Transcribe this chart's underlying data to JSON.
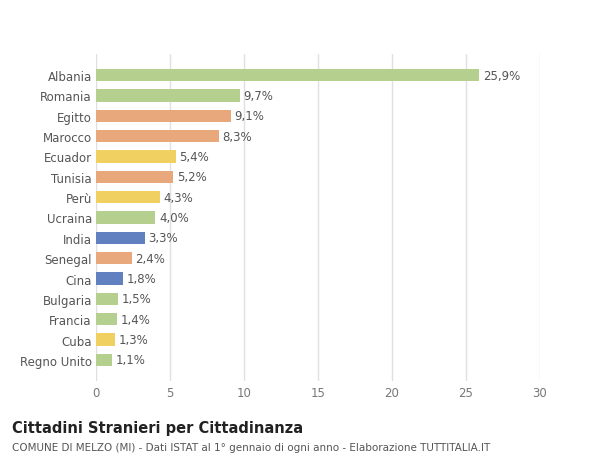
{
  "countries": [
    "Albania",
    "Romania",
    "Egitto",
    "Marocco",
    "Ecuador",
    "Tunisia",
    "Perù",
    "Ucraina",
    "India",
    "Senegal",
    "Cina",
    "Bulgaria",
    "Francia",
    "Cuba",
    "Regno Unito"
  ],
  "values": [
    25.9,
    9.7,
    9.1,
    8.3,
    5.4,
    5.2,
    4.3,
    4.0,
    3.3,
    2.4,
    1.8,
    1.5,
    1.4,
    1.3,
    1.1
  ],
  "labels": [
    "25,9%",
    "9,7%",
    "9,1%",
    "8,3%",
    "5,4%",
    "5,2%",
    "4,3%",
    "4,0%",
    "3,3%",
    "2,4%",
    "1,8%",
    "1,5%",
    "1,4%",
    "1,3%",
    "1,1%"
  ],
  "colors": [
    "#b5cf8f",
    "#b5cf8f",
    "#e8a87c",
    "#e8a87c",
    "#f0d060",
    "#e8a87c",
    "#f0d060",
    "#b5cf8f",
    "#6080c0",
    "#e8a87c",
    "#6080c0",
    "#b5cf8f",
    "#b5cf8f",
    "#f0d060",
    "#b5cf8f"
  ],
  "legend": {
    "Europa": "#b5cf8f",
    "Africa": "#e8a87c",
    "America": "#f0d060",
    "Asia": "#6080c0"
  },
  "xlim": [
    0,
    30
  ],
  "xticks": [
    0,
    5,
    10,
    15,
    20,
    25,
    30
  ],
  "title": "Cittadini Stranieri per Cittadinanza",
  "subtitle": "COMUNE DI MELZO (MI) - Dati ISTAT al 1° gennaio di ogni anno - Elaborazione TUTTITALIA.IT",
  "bg_color": "#ffffff",
  "plot_bg_color": "#ffffff",
  "grid_color": "#e0e0e0",
  "bar_height": 0.6,
  "label_fontsize": 8.5,
  "tick_fontsize": 8.5,
  "title_fontsize": 10.5,
  "subtitle_fontsize": 7.5
}
